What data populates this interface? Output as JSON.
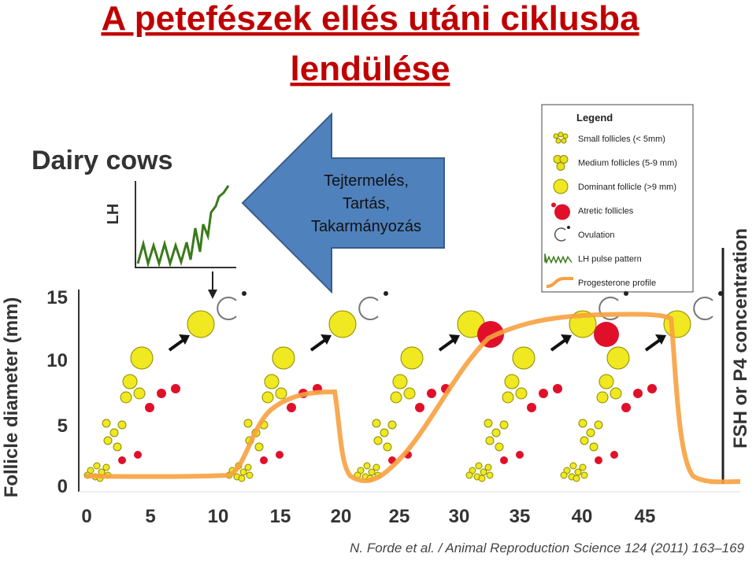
{
  "title": {
    "line1": "A petefészek ellés utáni ciklusba",
    "line2": "lendülése"
  },
  "figure": {
    "heading": "Dairy cows",
    "inset_label": "LH",
    "arrow_text": [
      "Tejtermelés,",
      "Tartás,",
      "Takarmányozás"
    ],
    "legend": {
      "title": "Legend",
      "items": [
        "Small follicles (< 5mm)",
        "Medium follicles (5-9 mm)",
        "Dominant follicle (>9 mm)",
        "Atretic follicles",
        "Ovulation",
        "LH pulse pattern",
        "Progesterone profile"
      ]
    },
    "y_axis_label": "Follicle diameter (mm)",
    "y_ticks": [
      15,
      10,
      5,
      0
    ],
    "x_ticks": [
      0,
      5,
      10,
      15,
      20,
      25,
      30,
      35,
      40,
      45
    ],
    "right_axis_label": "FSH or P4 concentration",
    "citation": "N. Forde et al. / Animal Reproduction Science 124 (2011) 163–169"
  }
}
